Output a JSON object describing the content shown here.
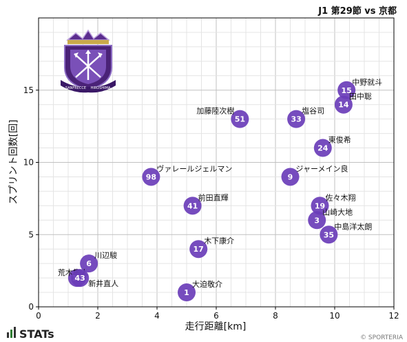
{
  "title": "J1 第29節 vs 京都",
  "brand": "STATs",
  "credit": "© SPORTERIA",
  "logo": {
    "banner_left": "SANFRECCE",
    "banner_right": "HIROSHIMA",
    "color": "#5b2d8e"
  },
  "colors": {
    "point": "#6a3db8",
    "grid": "#c8c8c8",
    "axis": "#000000"
  },
  "chart_data": {
    "type": "scatter",
    "title": "J1 第29節 vs 京都",
    "xlabel": "走行距離[km]",
    "ylabel": "スプリント回数[回]",
    "xlim": [
      0,
      12
    ],
    "ylim": [
      0,
      20
    ],
    "xticks": [
      0,
      2,
      4,
      6,
      8,
      10,
      12
    ],
    "yticks": [
      0,
      5,
      10,
      15
    ],
    "grid": true,
    "points": [
      {
        "number": "15",
        "name": "中野就斗",
        "x": 10.4,
        "y": 15
      },
      {
        "number": "14",
        "name": "田中聡",
        "x": 10.3,
        "y": 14
      },
      {
        "number": "51",
        "name": "加藤陸次樹",
        "x": 6.8,
        "y": 13
      },
      {
        "number": "33",
        "name": "塩谷司",
        "x": 8.7,
        "y": 13
      },
      {
        "number": "24",
        "name": "東俊希",
        "x": 9.6,
        "y": 11
      },
      {
        "number": "98",
        "name": "ヴァレールジェルマン",
        "x": 3.8,
        "y": 9
      },
      {
        "number": "9",
        "name": "ジャーメイン良",
        "x": 8.5,
        "y": 9
      },
      {
        "number": "41",
        "name": "前田直輝",
        "x": 5.2,
        "y": 7
      },
      {
        "number": "19",
        "name": "佐々木翔",
        "x": 9.5,
        "y": 7
      },
      {
        "number": "3",
        "name": "山崎大地",
        "x": 9.4,
        "y": 6
      },
      {
        "number": "35",
        "name": "中島洋太朗",
        "x": 9.8,
        "y": 5
      },
      {
        "number": "17",
        "name": "木下康介",
        "x": 5.4,
        "y": 4
      },
      {
        "number": "6",
        "name": "川辺駿",
        "x": 1.7,
        "y": 3
      },
      {
        "number": "13",
        "name": "荒木隼人",
        "x": 1.3,
        "y": 2
      },
      {
        "number": "43",
        "name": "新井直人",
        "x": 1.4,
        "y": 2
      },
      {
        "number": "1",
        "name": "大迫敬介",
        "x": 5.0,
        "y": 1
      }
    ]
  }
}
